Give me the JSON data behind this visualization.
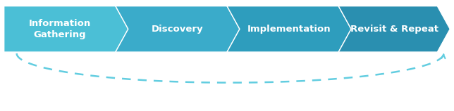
{
  "labels": [
    "Information\nGathering",
    "Discovery",
    "Implementation",
    "Revisit & Repeat"
  ],
  "colors": [
    "#4bbfd6",
    "#3aabca",
    "#2e9dbd",
    "#2a8fb0"
  ],
  "text_color": "#ffffff",
  "font_size": 9.5,
  "arrow_curve_color": "#62cde0",
  "background_color": "#ffffff",
  "fig_width": 6.44,
  "fig_height": 1.58
}
